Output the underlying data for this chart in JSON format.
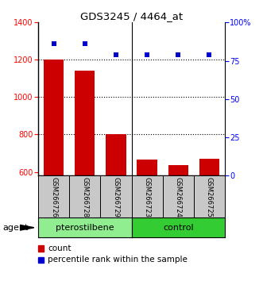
{
  "title": "GDS3245 / 4464_at",
  "samples": [
    "GSM266726",
    "GSM266728",
    "GSM266729",
    "GSM266723",
    "GSM266724",
    "GSM266725"
  ],
  "counts": [
    1200,
    1140,
    800,
    665,
    635,
    670
  ],
  "percentile_ranks": [
    86,
    86,
    79,
    79,
    79,
    79
  ],
  "ylim_left": [
    580,
    1400
  ],
  "ylim_right": [
    0,
    100
  ],
  "yticks_left": [
    600,
    800,
    1000,
    1200,
    1400
  ],
  "yticks_right": [
    0,
    25,
    50,
    75,
    100
  ],
  "yright_labels": [
    "0",
    "25",
    "50",
    "75",
    "100%"
  ],
  "bar_color": "#CC0000",
  "dot_color": "#0000CC",
  "sample_bg_color": "#C8C8C8",
  "pter_color": "#90EE90",
  "ctrl_color": "#33CC33",
  "agent_label": "agent",
  "legend_count_label": "count",
  "legend_pct_label": "percentile rank within the sample",
  "grid_yticks": [
    800,
    1000,
    1200
  ]
}
